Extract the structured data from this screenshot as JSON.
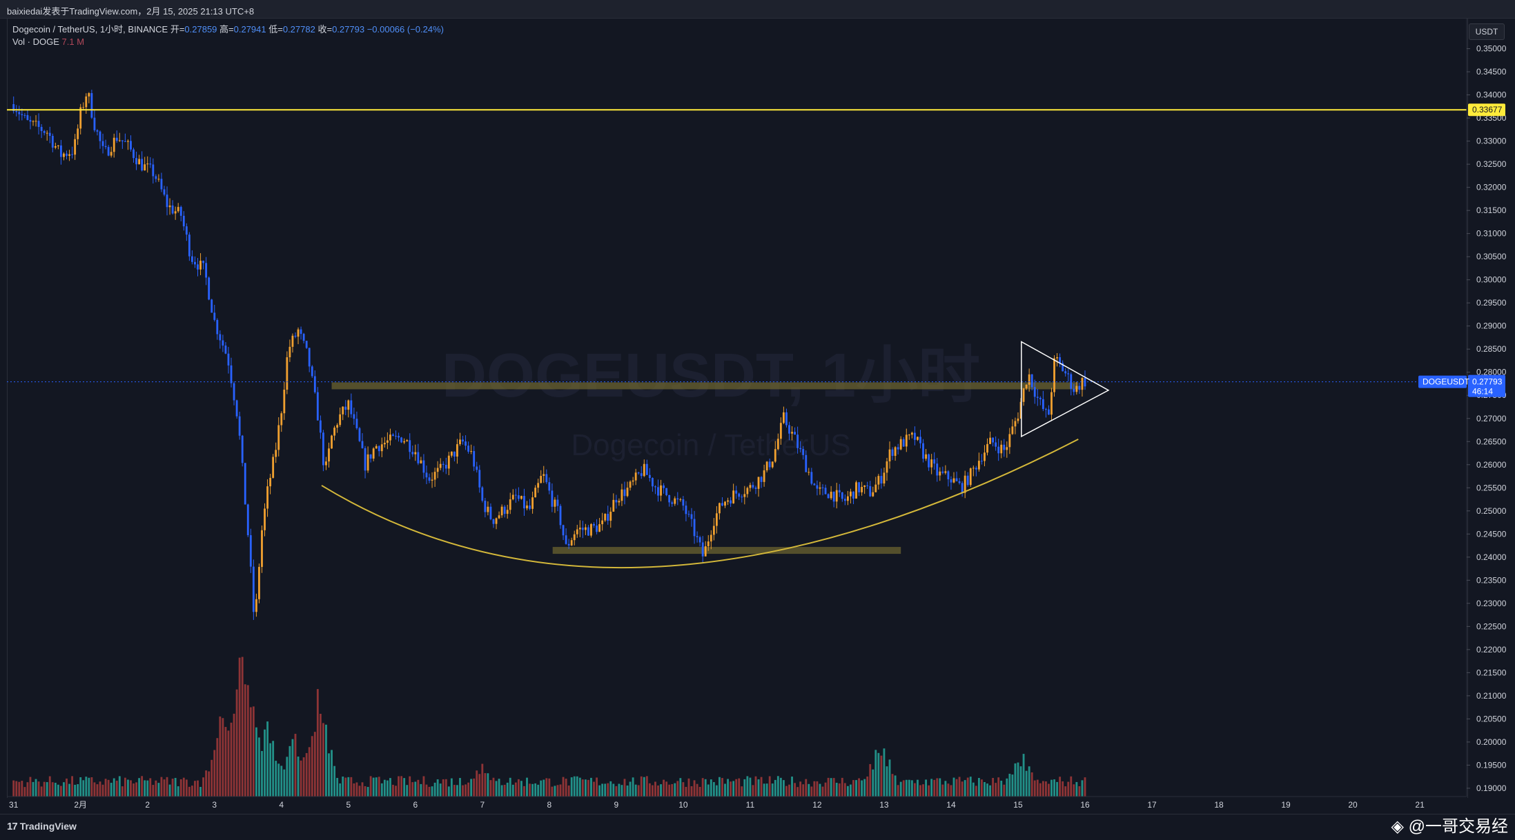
{
  "header": {
    "publish_line": "baixiedai发表于TradingView.com，2月 15, 2025 21:13 UTC+8"
  },
  "legend": {
    "symbol": "Dogecoin / TetherUS, 1小时, BINANCE",
    "open_label": "开=",
    "open_value": "0.27859",
    "high_label": "高=",
    "high_value": "0.27941",
    "low_label": "低=",
    "low_value": "0.27782",
    "close_label": "收=",
    "close_value": "0.27793",
    "change": "−0.00066 (−0.24%)",
    "vol_label": "Vol · DOGE",
    "vol_value": "7.1 M"
  },
  "price_axis": {
    "currency": "USDT",
    "resistance_tag": "0.33677",
    "symbol_tag": "DOGEUSDT",
    "last_price_tag": "0.27793",
    "countdown": "46:14"
  },
  "watermark_bg": {
    "line1": "DOGEUSDT, 1小时",
    "line2": "Dogecoin / TetherUS"
  },
  "footer": {
    "brand": "TradingView",
    "credit": "@一哥交易经"
  },
  "colors": {
    "background": "#131722",
    "up_candle": "#f0a030",
    "down_candle": "#2962ff",
    "up_volume": "#26a69a",
    "down_volume": "#a53a3a",
    "resistance": "#ffeb3b",
    "zone": "#6b6330",
    "cup_curve": "#d4b83a",
    "triangle": "#ffffff",
    "last_price_line": "#2962ff"
  },
  "chart_data": {
    "type": "candlestick",
    "ylim": [
      0.1882,
      0.3565
    ],
    "yticks": [
      "0.35000",
      "0.34500",
      "0.34000",
      "0.33500",
      "0.33000",
      "0.32500",
      "0.32000",
      "0.31500",
      "0.31000",
      "0.30500",
      "0.30000",
      "0.29500",
      "0.29000",
      "0.28500",
      "0.28000",
      "0.27500",
      "0.27000",
      "0.26500",
      "0.26000",
      "0.25500",
      "0.25000",
      "0.24500",
      "0.24000",
      "0.23500",
      "0.23000",
      "0.22500",
      "0.22000",
      "0.21500",
      "0.21000",
      "0.20500",
      "0.20000",
      "0.19500",
      "0.19000"
    ],
    "x_ticks": [
      "31",
      "2月",
      "2",
      "3",
      "4",
      "5",
      "6",
      "7",
      "8",
      "9",
      "10",
      "11",
      "12",
      "13",
      "14",
      "15",
      "16",
      "17",
      "18",
      "19",
      "20",
      "21"
    ],
    "xrange_days": [
      -0.1,
      21.7
    ],
    "last_price": 0.27793,
    "resistance_level": 0.33677,
    "zones": [
      {
        "from_day": 4.75,
        "to_day": 15.9,
        "low": 0.2765,
        "high": 0.2778
      },
      {
        "from_day": 8.05,
        "to_day": 13.25,
        "low": 0.2412,
        "high": 0.2422
      }
    ],
    "cup_curve": {
      "start": [
        4.6,
        0.2555
      ],
      "bottom": [
        9.7,
        0.238
      ],
      "end": [
        15.9,
        0.2655
      ]
    },
    "triangle": {
      "p1": [
        15.05,
        0.2866
      ],
      "p2": [
        15.05,
        0.2661
      ],
      "apex": [
        16.35,
        0.2761
      ]
    },
    "price_path": [
      [
        0.0,
        0.338
      ],
      [
        0.2,
        0.334
      ],
      [
        0.5,
        0.332
      ],
      [
        0.7,
        0.327
      ],
      [
        0.9,
        0.328
      ],
      [
        1.0,
        0.336
      ],
      [
        1.1,
        0.341
      ],
      [
        1.2,
        0.334
      ],
      [
        1.35,
        0.327
      ],
      [
        1.55,
        0.331
      ],
      [
        1.7,
        0.329
      ],
      [
        1.9,
        0.325
      ],
      [
        2.1,
        0.323
      ],
      [
        2.3,
        0.316
      ],
      [
        2.5,
        0.314
      ],
      [
        2.65,
        0.305
      ],
      [
        2.85,
        0.302
      ],
      [
        3.0,
        0.291
      ],
      [
        3.2,
        0.283
      ],
      [
        3.35,
        0.27
      ],
      [
        3.5,
        0.245
      ],
      [
        3.6,
        0.225
      ],
      [
        3.7,
        0.245
      ],
      [
        3.8,
        0.255
      ],
      [
        3.9,
        0.262
      ],
      [
        4.0,
        0.272
      ],
      [
        4.1,
        0.285
      ],
      [
        4.25,
        0.289
      ],
      [
        4.4,
        0.283
      ],
      [
        4.55,
        0.27
      ],
      [
        4.65,
        0.258
      ],
      [
        4.75,
        0.266
      ],
      [
        4.85,
        0.27
      ],
      [
        5.0,
        0.273
      ],
      [
        5.1,
        0.268
      ],
      [
        5.25,
        0.26
      ],
      [
        5.4,
        0.264
      ],
      [
        5.6,
        0.265
      ],
      [
        5.8,
        0.266
      ],
      [
        6.0,
        0.263
      ],
      [
        6.2,
        0.257
      ],
      [
        6.4,
        0.259
      ],
      [
        6.55,
        0.262
      ],
      [
        6.7,
        0.265
      ],
      [
        6.85,
        0.262
      ],
      [
        7.0,
        0.252
      ],
      [
        7.15,
        0.248
      ],
      [
        7.3,
        0.25
      ],
      [
        7.5,
        0.253
      ],
      [
        7.7,
        0.25
      ],
      [
        7.9,
        0.258
      ],
      [
        8.05,
        0.252
      ],
      [
        8.15,
        0.249
      ],
      [
        8.25,
        0.242
      ],
      [
        8.4,
        0.246
      ],
      [
        8.6,
        0.246
      ],
      [
        8.8,
        0.247
      ],
      [
        9.0,
        0.253
      ],
      [
        9.2,
        0.255
      ],
      [
        9.4,
        0.259
      ],
      [
        9.6,
        0.255
      ],
      [
        9.8,
        0.253
      ],
      [
        10.0,
        0.251
      ],
      [
        10.15,
        0.246
      ],
      [
        10.3,
        0.24
      ],
      [
        10.45,
        0.248
      ],
      [
        10.6,
        0.252
      ],
      [
        10.8,
        0.254
      ],
      [
        11.0,
        0.255
      ],
      [
        11.2,
        0.258
      ],
      [
        11.35,
        0.262
      ],
      [
        11.5,
        0.27
      ],
      [
        11.65,
        0.266
      ],
      [
        11.8,
        0.261
      ],
      [
        12.0,
        0.254
      ],
      [
        12.2,
        0.254
      ],
      [
        12.4,
        0.252
      ],
      [
        12.6,
        0.255
      ],
      [
        12.8,
        0.254
      ],
      [
        12.95,
        0.257
      ],
      [
        13.1,
        0.263
      ],
      [
        13.3,
        0.265
      ],
      [
        13.45,
        0.266
      ],
      [
        13.6,
        0.262
      ],
      [
        13.8,
        0.258
      ],
      [
        14.0,
        0.257
      ],
      [
        14.15,
        0.255
      ],
      [
        14.3,
        0.258
      ],
      [
        14.45,
        0.262
      ],
      [
        14.6,
        0.265
      ],
      [
        14.8,
        0.263
      ],
      [
        15.0,
        0.271
      ],
      [
        15.15,
        0.28
      ],
      [
        15.3,
        0.274
      ],
      [
        15.45,
        0.27
      ],
      [
        15.55,
        0.283
      ],
      [
        15.7,
        0.28
      ],
      [
        15.85,
        0.276
      ],
      [
        15.95,
        0.278
      ],
      [
        16.0,
        0.278
      ]
    ],
    "volume_spikes": [
      [
        3.4,
        1.0
      ],
      [
        3.5,
        0.85
      ],
      [
        3.1,
        0.55
      ],
      [
        3.8,
        0.5
      ],
      [
        4.55,
        0.7
      ],
      [
        4.2,
        0.45
      ],
      [
        12.95,
        0.38
      ],
      [
        15.05,
        0.3
      ],
      [
        7.0,
        0.25
      ]
    ]
  }
}
